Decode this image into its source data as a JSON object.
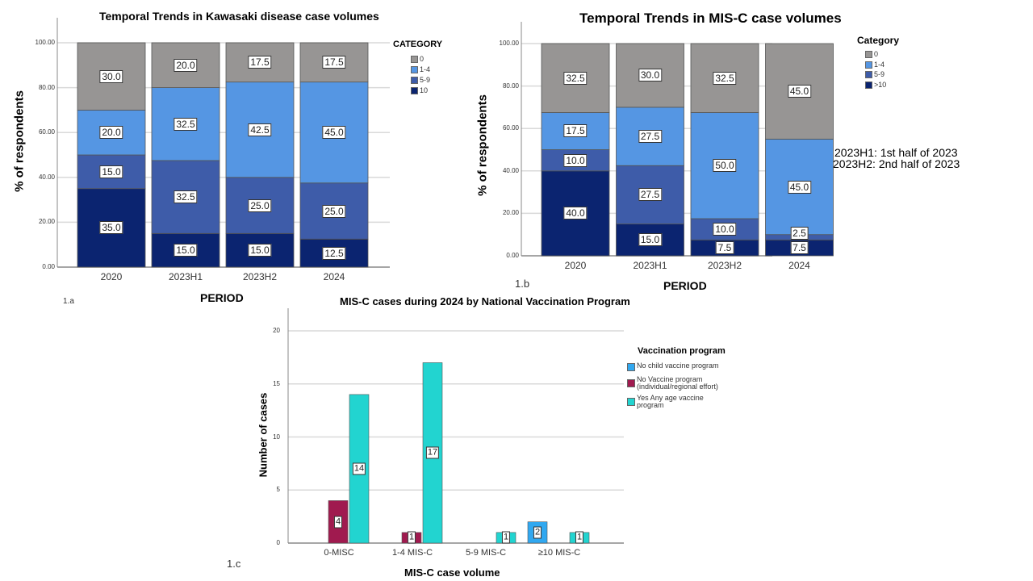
{
  "colors": {
    "cat0": "#979594",
    "cat1_4": "#5596e3",
    "cat5_9": "#3e5ca9",
    "cat10": "#0b2470",
    "no_child": "#31a8f0",
    "no_vaccine": "#a01a4f",
    "yes_any": "#22d4d0",
    "grid": "#d9d9d9",
    "axis": "#888888"
  },
  "chart_data": [
    {
      "id": "1a",
      "type": "bar",
      "stacked": true,
      "title": "Temporal Trends in Kawasaki disease case volumes",
      "xlabel": "PERIOD",
      "ylabel": "% of respondents",
      "panel_label": "1.a",
      "categories": [
        "2020",
        "2023H1",
        "2023H2",
        "2024"
      ],
      "ylim": [
        0,
        100
      ],
      "yticks": [
        "0.00",
        "20.00",
        "40.00",
        "60.00",
        "80.00",
        "100.00"
      ],
      "grid": true,
      "legend_title": "CATEGORY",
      "legend_position": "top-right",
      "series": [
        {
          "name": "10",
          "color_key": "cat10",
          "values": [
            35.0,
            15.0,
            15.0,
            12.5
          ]
        },
        {
          "name": "5-9",
          "color_key": "cat5_9",
          "values": [
            15.0,
            32.5,
            25.0,
            25.0
          ]
        },
        {
          "name": "1-4",
          "color_key": "cat1_4",
          "values": [
            20.0,
            32.5,
            42.5,
            45.0
          ]
        },
        {
          "name": "0",
          "color_key": "cat0",
          "values": [
            30.0,
            20.0,
            17.5,
            17.5
          ]
        }
      ]
    },
    {
      "id": "1b",
      "type": "bar",
      "stacked": true,
      "title": "Temporal Trends in MIS-C case volumes",
      "xlabel": "PERIOD",
      "ylabel": "% of respondents",
      "panel_label": "1.b",
      "categories": [
        "2020",
        "2023H1",
        "2023H2",
        "2024"
      ],
      "ylim": [
        0,
        100
      ],
      "yticks": [
        "0.00",
        "20.00",
        "40.00",
        "60.00",
        "80.00",
        "100.00"
      ],
      "grid": true,
      "legend_title": "Category",
      "legend_position": "top-right",
      "annotations": [
        "2023H1: 1st half of 2023",
        "2023H2: 2nd half of 2023"
      ],
      "series": [
        {
          "name": ">10",
          "color_key": "cat10",
          "values": [
            40.0,
            15.0,
            7.5,
            7.5
          ]
        },
        {
          "name": "5-9",
          "color_key": "cat5_9",
          "values": [
            10.0,
            27.5,
            10.0,
            2.5
          ]
        },
        {
          "name": "1-4",
          "color_key": "cat1_4",
          "values": [
            17.5,
            27.5,
            50.0,
            45.0
          ]
        },
        {
          "name": "0",
          "color_key": "cat0",
          "values": [
            32.5,
            30.0,
            32.5,
            45.0
          ]
        }
      ]
    },
    {
      "id": "1c",
      "type": "bar",
      "stacked": false,
      "title": "MIS-C cases during 2024 by National Vaccination Program",
      "xlabel": "MIS-C case volume",
      "ylabel": "Number of cases",
      "panel_label": "1.c",
      "categories": [
        "0-MISC",
        "1-4 MIS-C",
        "5-9 MIS-C",
        "≥10 MIS-C"
      ],
      "ylim": [
        0,
        20
      ],
      "yticks": [
        "0",
        "5",
        "10",
        "15",
        "20"
      ],
      "grid": true,
      "legend_title": "Vaccination program",
      "legend_position": "right",
      "series": [
        {
          "name": "No child vaccine program",
          "color_key": "no_child",
          "values": [
            0,
            0,
            0,
            2
          ]
        },
        {
          "name": "No Vaccine program (individual/regional effort)",
          "color_key": "no_vaccine",
          "values": [
            4,
            1,
            0,
            0
          ]
        },
        {
          "name": "Yes Any age vaccine program",
          "color_key": "yes_any",
          "values": [
            14,
            17,
            1,
            1
          ]
        }
      ]
    }
  ]
}
